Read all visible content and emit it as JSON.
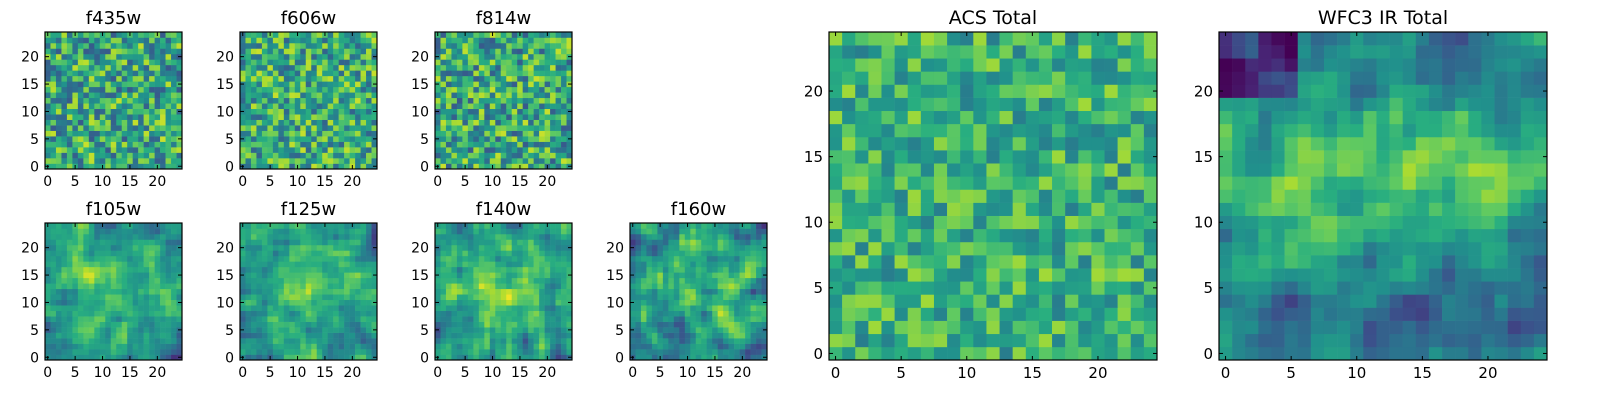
{
  "chart_data": [
    {
      "type": "heatmap",
      "title": "f435w",
      "grid_size": 25,
      "colormap": "viridis",
      "xlim": [
        0,
        25
      ],
      "ylim": [
        0,
        25
      ],
      "xticks": [
        0,
        5,
        10,
        15,
        20
      ],
      "yticks": [
        0,
        5,
        10,
        15,
        20
      ],
      "z": [],
      "seed": 11,
      "smooth": 0,
      "base": 0.6,
      "noise": 0.32,
      "pattern": "none"
    },
    {
      "type": "heatmap",
      "title": "f606w",
      "grid_size": 25,
      "colormap": "viridis",
      "xlim": [
        0,
        25
      ],
      "ylim": [
        0,
        25
      ],
      "xticks": [
        0,
        5,
        10,
        15,
        20
      ],
      "yticks": [
        0,
        5,
        10,
        15,
        20
      ],
      "z": [],
      "seed": 23,
      "smooth": 0,
      "base": 0.62,
      "noise": 0.3,
      "pattern": "none"
    },
    {
      "type": "heatmap",
      "title": "f814w",
      "grid_size": 25,
      "colormap": "viridis",
      "xlim": [
        0,
        25
      ],
      "ylim": [
        0,
        25
      ],
      "xticks": [
        0,
        5,
        10,
        15,
        20
      ],
      "yticks": [
        0,
        5,
        10,
        15,
        20
      ],
      "z": [],
      "seed": 37,
      "smooth": 0,
      "base": 0.6,
      "noise": 0.32,
      "pattern": "none"
    },
    {
      "type": "heatmap",
      "title": "f105w",
      "grid_size": 25,
      "colormap": "viridis",
      "xlim": [
        0,
        25
      ],
      "ylim": [
        0,
        25
      ],
      "xticks": [
        0,
        5,
        10,
        15,
        20
      ],
      "yticks": [
        0,
        5,
        10,
        15,
        20
      ],
      "z": [],
      "seed": 41,
      "smooth": 1,
      "base": 0.6,
      "noise": 0.3,
      "pattern": "center"
    },
    {
      "type": "heatmap",
      "title": "f125w",
      "grid_size": 25,
      "colormap": "viridis",
      "xlim": [
        0,
        25
      ],
      "ylim": [
        0,
        25
      ],
      "xticks": [
        0,
        5,
        10,
        15,
        20
      ],
      "yticks": [
        0,
        5,
        10,
        15,
        20
      ],
      "z": [],
      "seed": 53,
      "smooth": 1,
      "base": 0.6,
      "noise": 0.3,
      "pattern": "center"
    },
    {
      "type": "heatmap",
      "title": "f140w",
      "grid_size": 25,
      "colormap": "viridis",
      "xlim": [
        0,
        25
      ],
      "ylim": [
        0,
        25
      ],
      "xticks": [
        0,
        5,
        10,
        15,
        20
      ],
      "yticks": [
        0,
        5,
        10,
        15,
        20
      ],
      "z": [],
      "seed": 67,
      "smooth": 1,
      "base": 0.6,
      "noise": 0.3,
      "pattern": "center"
    },
    {
      "type": "heatmap",
      "title": "f160w",
      "grid_size": 25,
      "colormap": "viridis",
      "xlim": [
        0,
        25
      ],
      "ylim": [
        0,
        25
      ],
      "xticks": [
        0,
        5,
        10,
        15,
        20
      ],
      "yticks": [
        0,
        5,
        10,
        15,
        20
      ],
      "z": [],
      "seed": 79,
      "smooth": 1,
      "base": 0.58,
      "noise": 0.32,
      "pattern": "center"
    },
    {
      "type": "heatmap",
      "title": "ACS Total",
      "grid_size": 25,
      "colormap": "viridis",
      "xlim": [
        0,
        25
      ],
      "ylim": [
        0,
        25
      ],
      "xticks": [
        0,
        5,
        10,
        15,
        20
      ],
      "yticks": [
        0,
        5,
        10,
        15,
        20
      ],
      "z": [],
      "seed": 97,
      "smooth": 0,
      "base": 0.64,
      "noise": 0.22,
      "pattern": "none"
    },
    {
      "type": "heatmap",
      "title": "WFC3 IR Total",
      "grid_size": 25,
      "colormap": "viridis",
      "xlim": [
        0,
        25
      ],
      "ylim": [
        0,
        25
      ],
      "xticks": [
        0,
        5,
        10,
        15,
        20
      ],
      "yticks": [
        0,
        5,
        10,
        15,
        20
      ],
      "z": [],
      "seed": 113,
      "smooth": 1,
      "base": 0.55,
      "noise": 0.25,
      "pattern": "wfc3"
    }
  ]
}
